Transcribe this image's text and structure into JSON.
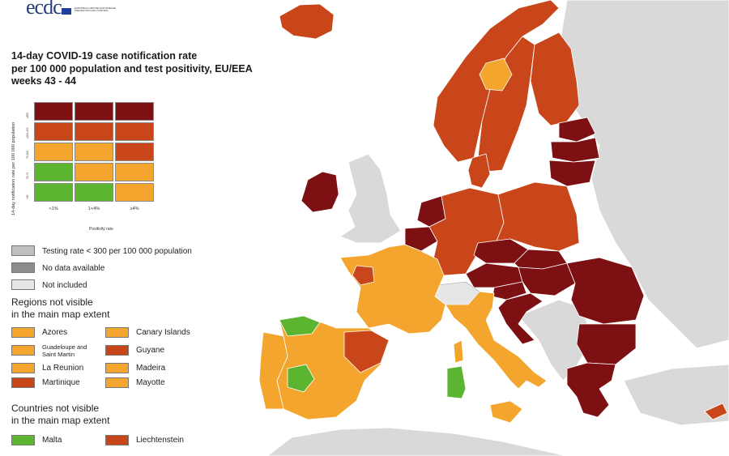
{
  "colors": {
    "sea": "#ffffff",
    "non_eu_land": "#d9d9d9",
    "not_included": "#e6e6e6",
    "testing_low": "#bfbfbf",
    "no_data": "#8c8c8c",
    "green": "#5cb531",
    "orange": "#f3a52d",
    "red": "#c9461a",
    "darkred": "#7d1012"
  },
  "logo": {
    "text": "ecdc",
    "org": "EUROPEAN CENTRE FOR DISEASE PREVENTION AND CONTROL"
  },
  "title": {
    "line1": "14-day COVID-19 case notification rate",
    "line2": "per 100 000 population and test positivity, EU/EEA",
    "line3": "weeks 43 - 44"
  },
  "matrix": {
    "y_label": "14-day notification rate per 100 000 population",
    "x_label": "Positivity rate",
    "row_labels": [
      "≥500",
      "≥200-499",
      "75-200",
      "50-74",
      "<50"
    ],
    "col_labels": [
      "<1%",
      "1<4%",
      "≥4%"
    ],
    "cells": [
      [
        "darkred",
        "darkred",
        "darkred"
      ],
      [
        "red",
        "red",
        "red"
      ],
      [
        "orange",
        "orange",
        "red"
      ],
      [
        "green",
        "orange",
        "orange"
      ],
      [
        "green",
        "green",
        "orange"
      ]
    ]
  },
  "legend": {
    "testing": "Testing rate < 300 per 100 000 population",
    "no_data": "No data available",
    "not_included": "Not included",
    "regions_header_1": "Regions not visible",
    "regions_header_2": "in the main map extent",
    "regions": [
      {
        "name": "Azores",
        "color": "orange"
      },
      {
        "name": "Canary Islands",
        "color": "orange"
      },
      {
        "name": "Guadeloupe and Saint Martin",
        "color": "orange"
      },
      {
        "name": "Guyane",
        "color": "red"
      },
      {
        "name": "La Reunion",
        "color": "orange"
      },
      {
        "name": "Madeira",
        "color": "orange"
      },
      {
        "name": "Martinique",
        "color": "red"
      },
      {
        "name": "Mayotte",
        "color": "orange"
      }
    ],
    "countries_header_1": "Countries not visible",
    "countries_header_2": "in the main map extent",
    "countries": [
      {
        "name": "Malta",
        "color": "green"
      },
      {
        "name": "Liechtenstein",
        "color": "red"
      }
    ]
  },
  "map_regions": [
    {
      "name": "iceland",
      "status": "red"
    },
    {
      "name": "ireland",
      "status": "darkred"
    },
    {
      "name": "norway",
      "status": "red"
    },
    {
      "name": "sweden",
      "status": "red"
    },
    {
      "name": "finland",
      "status": "red"
    },
    {
      "name": "estonia",
      "status": "darkred"
    },
    {
      "name": "latvia",
      "status": "darkred"
    },
    {
      "name": "lithuania",
      "status": "darkred"
    },
    {
      "name": "denmark",
      "status": "red"
    },
    {
      "name": "netherlands",
      "status": "darkred"
    },
    {
      "name": "belgium",
      "status": "darkred"
    },
    {
      "name": "germany",
      "status": "red"
    },
    {
      "name": "poland",
      "status": "red"
    },
    {
      "name": "czechia",
      "status": "darkred"
    },
    {
      "name": "slovakia",
      "status": "darkred"
    },
    {
      "name": "austria",
      "status": "darkred"
    },
    {
      "name": "hungary",
      "status": "darkred"
    },
    {
      "name": "slovenia",
      "status": "darkred"
    },
    {
      "name": "croatia",
      "status": "darkred"
    },
    {
      "name": "romania",
      "status": "darkred"
    },
    {
      "name": "bulgaria",
      "status": "darkred"
    },
    {
      "name": "greece",
      "status": "darkred"
    },
    {
      "name": "france",
      "status": "orange"
    },
    {
      "name": "italy",
      "status": "orange"
    },
    {
      "name": "spain",
      "status": "orange"
    },
    {
      "name": "portugal",
      "status": "orange"
    },
    {
      "name": "sardinia",
      "status": "green"
    },
    {
      "name": "sicily",
      "status": "orange"
    },
    {
      "name": "corsica",
      "status": "orange"
    },
    {
      "name": "cyprus",
      "status": "red"
    }
  ]
}
